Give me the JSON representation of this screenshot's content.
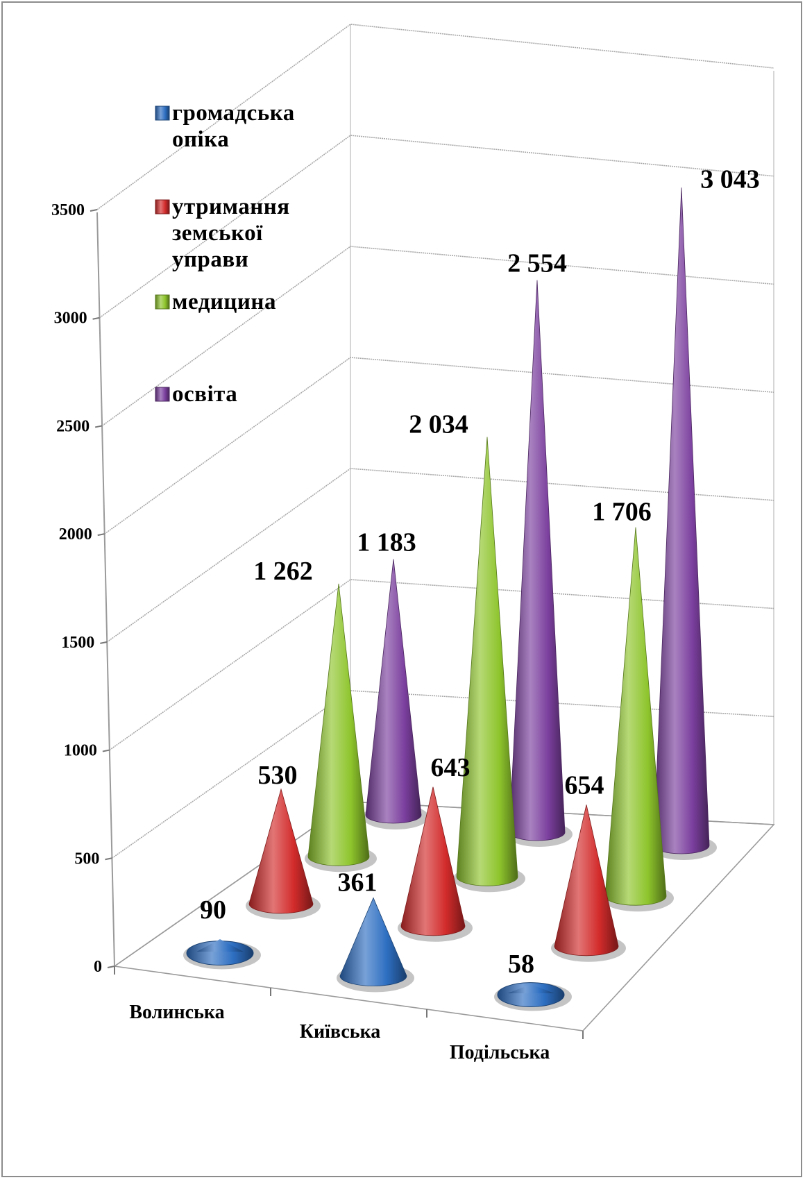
{
  "chart_data": {
    "type": "bar",
    "style": "3d-cone",
    "categories": [
      "Волинська",
      "Київська",
      "Подільська"
    ],
    "y_ticks": [
      "0",
      "500",
      "1000",
      "1500",
      "2000",
      "2500",
      "3000",
      "3500"
    ],
    "ylim": [
      0,
      3500
    ],
    "grid": true,
    "legend_position": "top-left",
    "series": [
      {
        "name": "громадська опіка",
        "legend_lines": [
          "громадська",
          "опіка"
        ],
        "color": "#2e6fc2",
        "values": [
          90,
          361,
          58
        ],
        "labels": [
          "90",
          "361",
          "58"
        ]
      },
      {
        "name": "утримання земської управи",
        "legend_lines": [
          "утримання",
          "земської",
          "управи"
        ],
        "color": "#d32b2b",
        "values": [
          530,
          643,
          654
        ],
        "labels": [
          "530",
          "643",
          "654"
        ]
      },
      {
        "name": "медицина",
        "legend_lines": [
          "медицина"
        ],
        "color": "#8ec52c",
        "values": [
          1262,
          2034,
          1706
        ],
        "labels": [
          "1 262",
          "2 034",
          "1 706"
        ]
      },
      {
        "name": "освіта",
        "legend_lines": [
          "освіта"
        ],
        "color": "#7b3f9e",
        "values": [
          1183,
          2554,
          3043
        ],
        "labels": [
          "1 183",
          "2 554",
          "3 043"
        ]
      }
    ]
  }
}
